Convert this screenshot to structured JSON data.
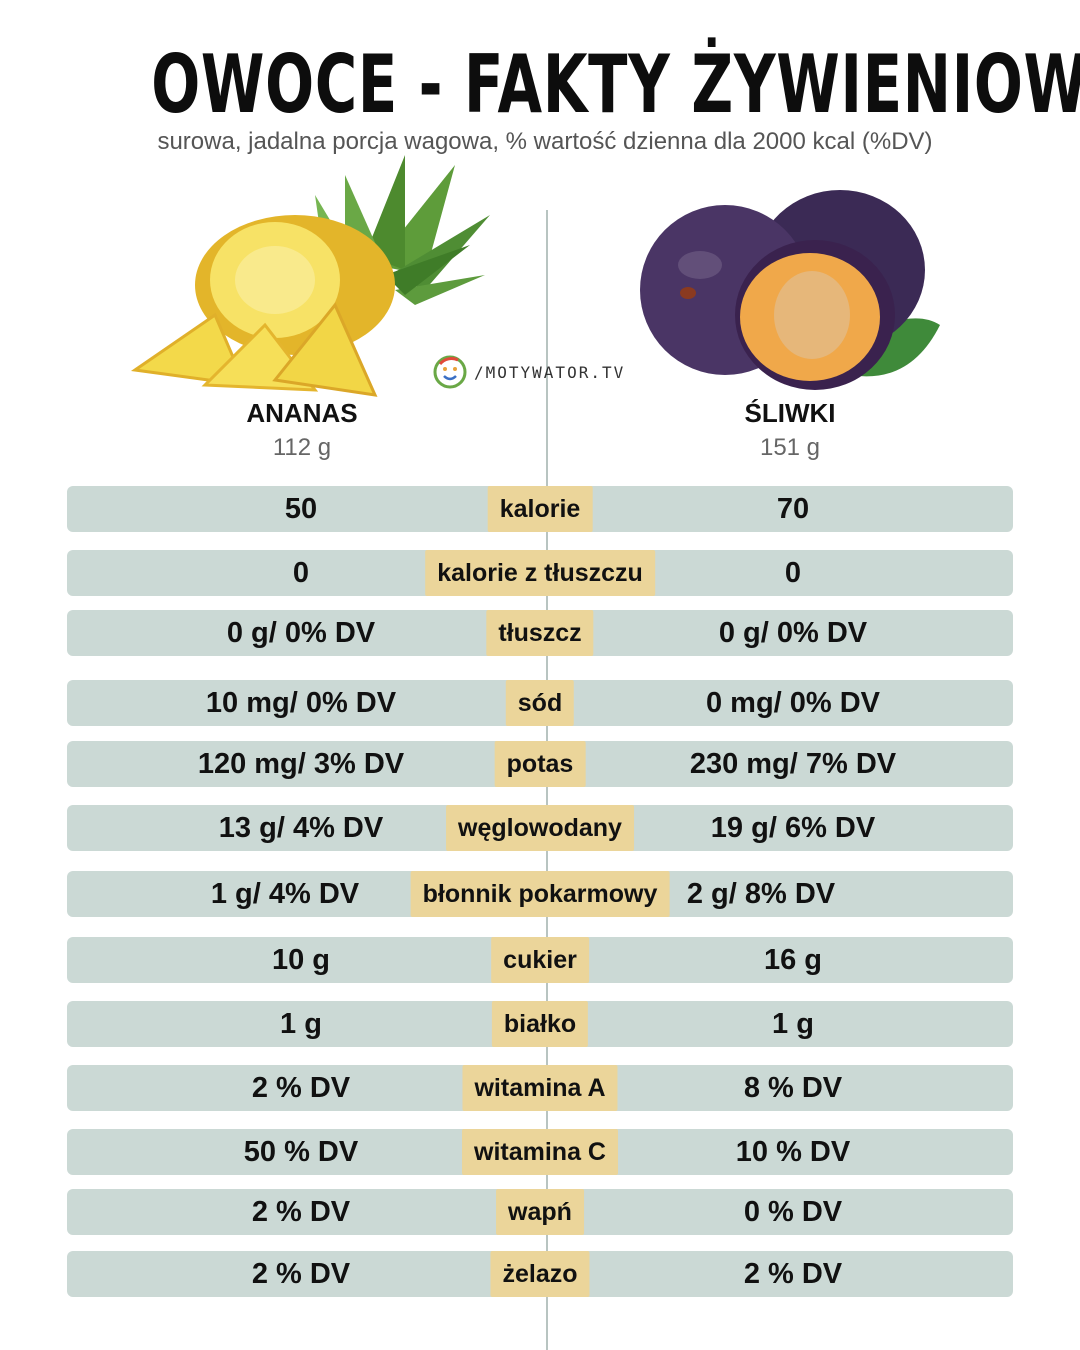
{
  "title": "OWOCE - FAKTY ŻYWIENIOWE",
  "subtitle": "surowa, jadalna porcja wagowa, % wartość dzienna dla 2000 kcal (%DV)",
  "logo_text": "/MOTYWATOR.TV",
  "fruits": {
    "left": {
      "name": "ANANAS",
      "weight": "112 g"
    },
    "right": {
      "name": "ŚLIWKI",
      "weight": "151 g"
    }
  },
  "rows": [
    {
      "label": "kalorie",
      "left": "50",
      "right": "70"
    },
    {
      "label": "kalorie z tłuszczu",
      "left": "0",
      "right": "0"
    },
    {
      "label": "tłuszcz",
      "left": "0 g/ 0% DV",
      "right": "0 g/ 0% DV"
    },
    {
      "label": "sód",
      "left": "10 mg/ 0% DV",
      "right": "0 mg/ 0% DV"
    },
    {
      "label": "potas",
      "left": "120 mg/ 3% DV",
      "right": "230 mg/ 7% DV"
    },
    {
      "label": "węglowodany",
      "left": "13 g/ 4% DV",
      "right": "19 g/ 6% DV"
    },
    {
      "label": "błonnik pokarmowy",
      "left": "1 g/ 4% DV",
      "right": "2 g/ 8% DV"
    },
    {
      "label": "cukier",
      "left": "10 g",
      "right": "16 g"
    },
    {
      "label": "białko",
      "left": "1 g",
      "right": "1 g"
    },
    {
      "label": "witamina A",
      "left": "2 % DV",
      "right": "8 % DV"
    },
    {
      "label": "witamina C",
      "left": "50 % DV",
      "right": "10 % DV"
    },
    {
      "label": "wapń",
      "left": "2 % DV",
      "right": "0 % DV"
    },
    {
      "label": "żelazo",
      "left": "2 % DV",
      "right": "2 % DV"
    }
  ],
  "colors": {
    "row_background": "#cbd9d5",
    "label_background": "#ebd59a",
    "divider": "#b8c4c1"
  }
}
